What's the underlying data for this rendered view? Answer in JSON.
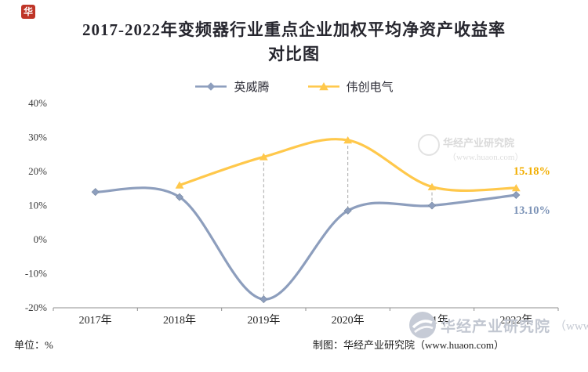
{
  "logo": {
    "glyph": "华"
  },
  "header": {
    "title_line1": "2017-2022年变频器行业重点企业加权平均净资产收益率",
    "title_line2": "对比图"
  },
  "footer": {
    "unit": "单位：%",
    "credit": "制图：华经产业研究院（www.huaon.com）"
  },
  "watermark": {
    "name": "华经产业研究院",
    "site": "（www.huaon.com）"
  },
  "chart_data": {
    "type": "line",
    "title": "2017-2022年变频器行业重点企业加权平均净资产收益率对比图",
    "categories": [
      "2017年",
      "2018年",
      "2019年",
      "2020年",
      "2021年",
      "2022年"
    ],
    "series": [
      {
        "name": "英威腾",
        "marker": "diamond",
        "color": "#8D9EBD",
        "label_color": "#7C93B7",
        "values": [
          14.0,
          12.5,
          -17.5,
          8.5,
          10.0,
          13.1
        ],
        "end_label": "13.10%",
        "label_dy": 24
      },
      {
        "name": "伟创电气",
        "marker": "triangle",
        "color": "#FFC84B",
        "label_color": "#F2AE00",
        "values": [
          null,
          16.0,
          24.3,
          29.2,
          15.5,
          15.18
        ],
        "end_label": "15.18%",
        "label_dy": -17
      }
    ],
    "ylim": [
      -20,
      40
    ],
    "yticks": [
      {
        "value": 40,
        "label": "40%"
      },
      {
        "value": 30,
        "label": "30%"
      },
      {
        "value": 20,
        "label": "20%"
      },
      {
        "value": 10,
        "label": "10%"
      },
      {
        "value": 0,
        "label": "0%"
      },
      {
        "value": -10,
        "label": "-10%"
      },
      {
        "value": -20,
        "label": "-20%"
      }
    ],
    "drop_line_indices": [
      2,
      3,
      4
    ],
    "grid": false,
    "legend_position": "top",
    "line_style": "smooth"
  }
}
